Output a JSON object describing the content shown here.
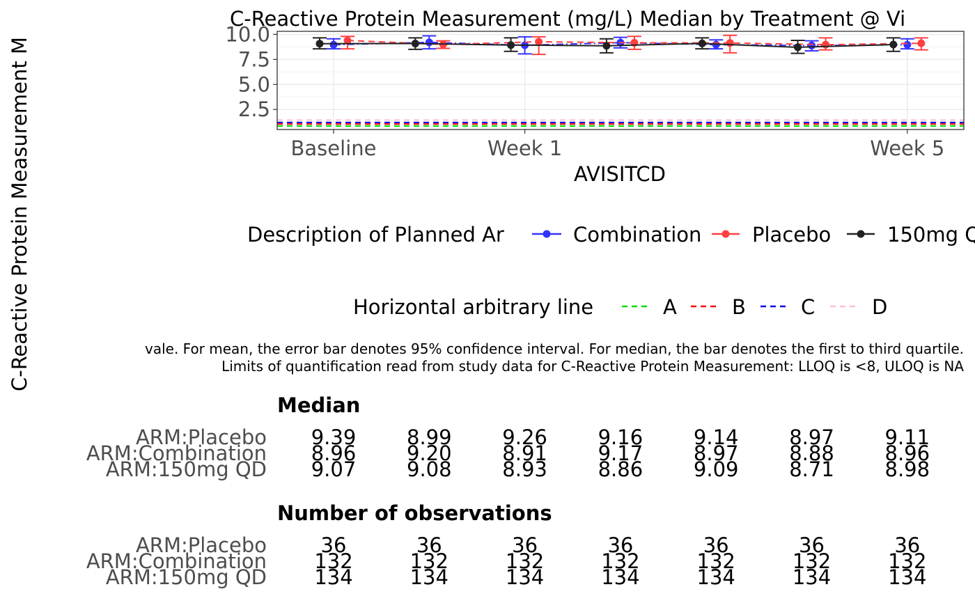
{
  "chart_data": {
    "type": "line",
    "title": "C-Reactive Protein Measurement (mg/L) Median by Treatment @ Vi",
    "xlabel": "AVISITCD",
    "ylabel": "C-Reactive Protein Measurement M",
    "x_tick_labels": [
      "Baseline",
      "Week 1",
      "Week 5"
    ],
    "y_ticks": [
      2.5,
      5.0,
      7.5,
      10.0
    ],
    "y_tick_labels": [
      "2.5",
      "5.0",
      "7.5",
      "10.0"
    ],
    "ylim": [
      0.5,
      10.3
    ],
    "grid": true,
    "visits": 7,
    "series": [
      {
        "name": "Combination",
        "color": "#3333ff",
        "line_style": "dash-dot",
        "offset": 0,
        "values": [
          8.96,
          9.2,
          8.91,
          9.17,
          8.97,
          8.88,
          8.96
        ],
        "lower": [
          8.55,
          8.55,
          8.05,
          8.65,
          8.55,
          8.35,
          8.55
        ],
        "upper": [
          9.55,
          9.85,
          9.75,
          9.7,
          9.45,
          9.35,
          9.55
        ]
      },
      {
        "name": "Placebo",
        "color": "#ff4040",
        "line_style": "dashed",
        "offset": 1,
        "values": [
          9.39,
          8.99,
          9.26,
          9.16,
          9.14,
          8.97,
          9.11
        ],
        "lower": [
          8.55,
          8.6,
          8.0,
          8.5,
          8.15,
          8.45,
          8.45
        ],
        "upper": [
          9.8,
          9.35,
          9.75,
          9.8,
          9.9,
          9.65,
          9.65
        ]
      },
      {
        "name": "150mg QD",
        "color": "#222222",
        "line_style": "solid",
        "offset": -1,
        "values": [
          9.07,
          9.08,
          8.93,
          8.86,
          9.09,
          8.71,
          8.98
        ],
        "lower": [
          8.55,
          8.5,
          8.3,
          8.15,
          8.55,
          8.1,
          8.3
        ],
        "upper": [
          9.65,
          9.65,
          9.65,
          9.55,
          9.65,
          9.4,
          9.65
        ]
      }
    ],
    "hlines": [
      {
        "name": "A",
        "color": "#00dd00",
        "value": 0.85
      },
      {
        "name": "B",
        "color": "#ff0000",
        "value": 1.05
      },
      {
        "name": "C",
        "color": "#0000ee",
        "value": 1.2
      },
      {
        "name": "D",
        "color": "#ffc0cb",
        "value": 1.45
      }
    ],
    "legend": {
      "arm_title": "Description of Planned Ar",
      "arm_entries": [
        "Combination",
        "Placebo",
        "150mg Q"
      ],
      "hline_title": "Horizontal arbitrary line",
      "hline_entries": [
        "A",
        "B",
        "C",
        "D"
      ]
    }
  },
  "footnote": {
    "line1": "vale. For mean, the error bar denotes 95% confidence interval. For median, the bar denotes the first to third quartile.",
    "line2": "Limits of quantification read from study data for C-Reactive Protein Measurement: LLOQ is <8, ULOQ is NA"
  },
  "tables": [
    {
      "title": "Median",
      "rows": [
        {
          "label": "ARM:Placebo",
          "values": [
            "9.39",
            "8.99",
            "9.26",
            "9.16",
            "9.14",
            "8.97",
            "9.11"
          ]
        },
        {
          "label": "ARM:Combination",
          "values": [
            "8.96",
            "9.20",
            "8.91",
            "9.17",
            "8.97",
            "8.88",
            "8.96"
          ]
        },
        {
          "label": "ARM:150mg QD",
          "values": [
            "9.07",
            "9.08",
            "8.93",
            "8.86",
            "9.09",
            "8.71",
            "8.98"
          ]
        }
      ]
    },
    {
      "title": "Number of observations",
      "rows": [
        {
          "label": "ARM:Placebo",
          "values": [
            "36",
            "36",
            "36",
            "36",
            "36",
            "36",
            "36"
          ]
        },
        {
          "label": "ARM:Combination",
          "values": [
            "132",
            "132",
            "132",
            "132",
            "132",
            "132",
            "132"
          ]
        },
        {
          "label": "ARM:150mg QD",
          "values": [
            "134",
            "134",
            "134",
            "134",
            "134",
            "134",
            "134"
          ]
        }
      ]
    }
  ]
}
